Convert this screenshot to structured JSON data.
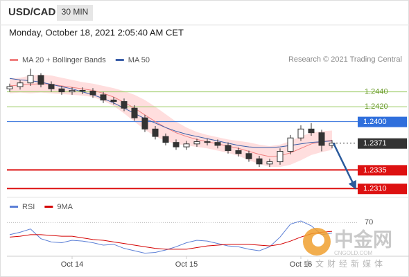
{
  "header": {
    "symbol": "USD/CAD",
    "interval": "30 MIN",
    "timestamp": "Monday, October 18, 2021 2:05:40 AM CET",
    "credit": "Research © 2021 Trading Central"
  },
  "chart_data": [
    {
      "type": "candlestick",
      "categories": [
        null,
        null,
        null,
        null,
        null,
        null,
        "Oct 14",
        null,
        null,
        null,
        null,
        null,
        null,
        null,
        null,
        null,
        null,
        "Oct 15",
        null,
        null,
        null,
        null,
        null,
        null,
        null,
        null,
        null,
        null,
        "Oct 16",
        null,
        null,
        null
      ],
      "open": [
        1.2444,
        1.2447,
        1.2452,
        1.2462,
        1.245,
        1.2444,
        1.244,
        1.2442,
        1.2441,
        1.2436,
        1.2429,
        1.2427,
        1.2418,
        1.2405,
        1.239,
        1.238,
        1.2372,
        1.2366,
        1.237,
        1.2373,
        1.2372,
        1.2368,
        1.2361,
        1.2357,
        1.235,
        1.2343,
        1.2346,
        1.236,
        1.2378,
        1.239,
        1.2385,
        1.2368
      ],
      "high": [
        1.2451,
        1.2456,
        1.2471,
        1.2465,
        1.2454,
        1.2448,
        1.2446,
        1.2446,
        1.2445,
        1.244,
        1.2433,
        1.2431,
        1.2422,
        1.2409,
        1.2394,
        1.2384,
        1.2376,
        1.2374,
        1.2377,
        1.2377,
        1.2376,
        1.2372,
        1.2365,
        1.2361,
        1.2354,
        1.235,
        1.2364,
        1.2382,
        1.2395,
        1.2398,
        1.2389,
        1.2375
      ],
      "low": [
        1.244,
        1.2443,
        1.2448,
        1.2446,
        1.244,
        1.2436,
        1.2436,
        1.2437,
        1.2432,
        1.2425,
        1.2423,
        1.2414,
        1.2401,
        1.2386,
        1.2376,
        1.2368,
        1.2362,
        1.2362,
        1.2366,
        1.2368,
        1.2364,
        1.2357,
        1.2353,
        1.2346,
        1.2339,
        1.2339,
        1.2342,
        1.2356,
        1.2374,
        1.2381,
        1.236,
        1.2364
      ],
      "close": [
        1.2447,
        1.2452,
        1.2462,
        1.245,
        1.2444,
        1.244,
        1.2442,
        1.2441,
        1.2436,
        1.2429,
        1.2427,
        1.2418,
        1.2405,
        1.239,
        1.238,
        1.2372,
        1.2366,
        1.237,
        1.2373,
        1.2372,
        1.2368,
        1.2361,
        1.2357,
        1.235,
        1.2343,
        1.2346,
        1.236,
        1.2378,
        1.239,
        1.2385,
        1.2368,
        1.2371
      ],
      "candle_color": "#333333",
      "ylim": [
        1.23,
        1.2475
      ],
      "series": [
        {
          "name": "MA 20 + Bollinger Bands",
          "color": "#f08080",
          "band_color": "#ffd6d6",
          "values": [
            1.2448,
            1.2449,
            1.245,
            1.2451,
            1.245,
            1.2448,
            1.2446,
            1.2444,
            1.2442,
            1.2438,
            1.2433,
            1.2426,
            1.2418,
            1.2409,
            1.24,
            1.2392,
            1.2385,
            1.238,
            1.2376,
            1.2373,
            1.237,
            1.2367,
            1.2364,
            1.236,
            1.2356,
            1.2353,
            1.2354,
            1.2358,
            1.2364,
            1.237,
            1.2373,
            1.2375
          ],
          "upper": [
            1.2458,
            1.2459,
            1.2462,
            1.2463,
            1.2462,
            1.2459,
            1.2456,
            1.2453,
            1.2451,
            1.2448,
            1.2445,
            1.2441,
            1.2436,
            1.2429,
            1.242,
            1.241,
            1.24,
            1.2392,
            1.2386,
            1.2382,
            1.2379,
            1.2376,
            1.2374,
            1.2372,
            1.2369,
            1.2367,
            1.2369,
            1.2374,
            1.238,
            1.2385,
            1.2387,
            1.2388
          ],
          "lower": [
            1.2438,
            1.2439,
            1.2438,
            1.2439,
            1.2438,
            1.2437,
            1.2436,
            1.2435,
            1.2433,
            1.2428,
            1.2421,
            1.2411,
            1.24,
            1.2389,
            1.238,
            1.2374,
            1.237,
            1.2368,
            1.2366,
            1.2364,
            1.2361,
            1.2358,
            1.2354,
            1.2348,
            1.2343,
            1.2339,
            1.2339,
            1.2342,
            1.2348,
            1.2355,
            1.2359,
            1.2362
          ]
        },
        {
          "name": "MA 50",
          "color": "#3a5ea8",
          "values": [
            1.2458,
            1.2456,
            1.2455,
            1.2453,
            1.245,
            1.2447,
            1.2444,
            1.244,
            1.2436,
            1.2431,
            1.2425,
            1.2418,
            1.2411,
            1.2404,
            1.2398,
            1.2392,
            1.2387,
            1.2383,
            1.238,
            1.2377,
            1.2374,
            1.2371,
            1.2368,
            1.2366,
            1.2365,
            1.2365,
            1.2366,
            1.2368,
            1.237,
            1.2372,
            1.2373,
            1.2374
          ]
        }
      ],
      "levels": [
        {
          "value": 1.244,
          "label": "1.2440",
          "color": "#9ccc65",
          "style": "plain"
        },
        {
          "value": 1.242,
          "label": "1.2420",
          "color": "#9ccc65",
          "style": "plain"
        },
        {
          "value": 1.24,
          "label": "1.2400",
          "color": "#2f6fdc",
          "style": "boxed"
        },
        {
          "value": 1.2371,
          "label": "1.2371",
          "color": "#333333",
          "style": "dotted"
        },
        {
          "value": 1.2335,
          "label": "1.2335",
          "color": "#dd1111",
          "style": "boxed"
        },
        {
          "value": 1.231,
          "label": "1.2310",
          "color": "#dd1111",
          "style": "boxed"
        }
      ],
      "forecast_color": "#2a5a9c"
    },
    {
      "type": "line",
      "ylim": [
        30,
        84
      ],
      "yticks": [
        70
      ],
      "series": [
        {
          "name": "RSI",
          "color": "#5b7fd6",
          "values": [
            55,
            58,
            62,
            50,
            46,
            45,
            48,
            47,
            45,
            42,
            43,
            38,
            35,
            32,
            33,
            36,
            40,
            45,
            48,
            47,
            44,
            41,
            40,
            37,
            35,
            40,
            52,
            68,
            72,
            66,
            55,
            57
          ]
        },
        {
          "name": "9MA",
          "color": "#d40000",
          "values": [
            52,
            53,
            55,
            55,
            54,
            53,
            53,
            51,
            49,
            48,
            46,
            44,
            42,
            40,
            38,
            37,
            37,
            37,
            39,
            41,
            42,
            43,
            43,
            43,
            42,
            41,
            43,
            47,
            52,
            56,
            58,
            59
          ]
        }
      ]
    }
  ],
  "watermark": {
    "brand": "中金网",
    "domain": "CNGOLD.COM",
    "tagline": "中文财经新媒体"
  }
}
